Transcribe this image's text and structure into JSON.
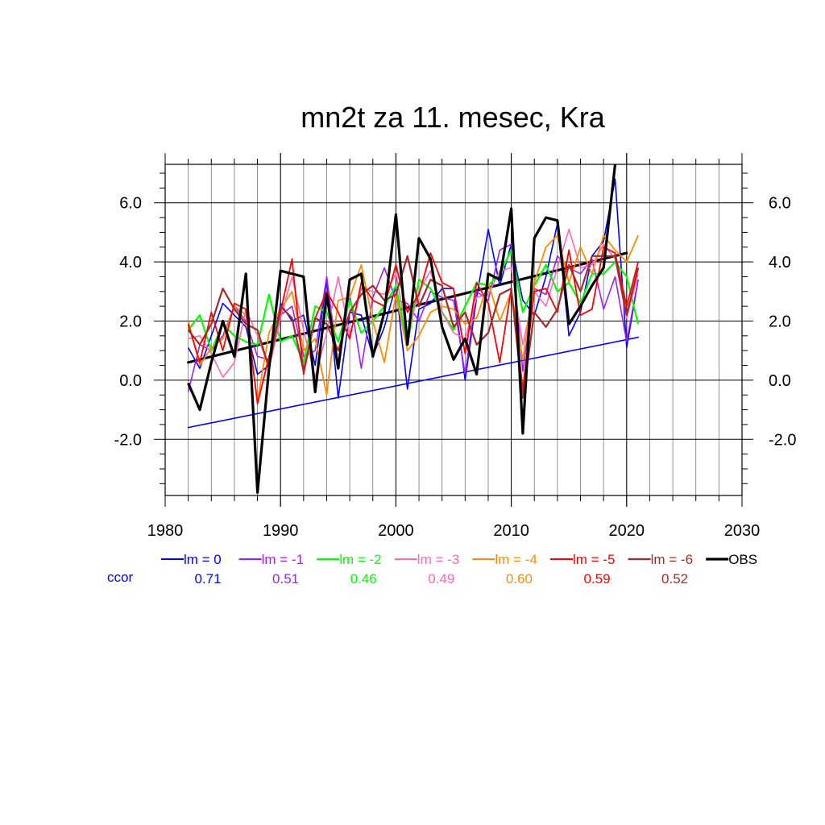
{
  "chart_data": {
    "type": "line",
    "title": "mn2t za 11. mesec, Kra",
    "xlim": [
      1980,
      2030
    ],
    "ylim": [
      -3.9,
      7.3
    ],
    "x_ticks": [
      1980,
      1990,
      2000,
      2010,
      2020,
      2030
    ],
    "x_tick_labels": [
      "1980",
      "1990",
      "2000",
      "2010",
      "2020",
      "2030"
    ],
    "y_ticks": [
      -2,
      0,
      2,
      4,
      6
    ],
    "y_tick_labels": [
      "-2.0",
      "0.0",
      "2.0",
      "4.0",
      "6.0"
    ],
    "grid": true,
    "legend_position": "bottom",
    "ccor_label": "ccor",
    "years": [
      1982,
      1983,
      1984,
      1985,
      1986,
      1987,
      1988,
      1989,
      1990,
      1991,
      1992,
      1993,
      1994,
      1995,
      1996,
      1997,
      1998,
      1999,
      2000,
      2001,
      2002,
      2003,
      2004,
      2005,
      2006,
      2007,
      2008,
      2009,
      2010,
      2011,
      2012,
      2013,
      2014,
      2015,
      2016,
      2017,
      2018,
      2019,
      2020,
      2021
    ],
    "series": [
      {
        "name": "lm = 0",
        "ccor": "0.71",
        "color": "#0000ff",
        "width": 1.6,
        "values": [
          1.1,
          0.4,
          1.5,
          2.6,
          2.2,
          1.8,
          0.2,
          0.5,
          2.6,
          2.0,
          2.2,
          0.5,
          3.4,
          -0.6,
          2.3,
          2.2,
          0.8,
          1.8,
          3.2,
          -0.3,
          2.4,
          2.6,
          3.1,
          3.1,
          0.0,
          2.8,
          5.1,
          3.2,
          4.6,
          2.7,
          2.2,
          3.5,
          5.3,
          1.5,
          2.3,
          4.2,
          4.7,
          6.8,
          1.1,
          3.4
        ]
      },
      {
        "name": "lm = -1",
        "ccor": "0.51",
        "color": "#a020f0",
        "width": 1.6,
        "values": [
          -0.4,
          1.2,
          1.0,
          1.5,
          2.5,
          2.0,
          0.8,
          0.7,
          2.2,
          2.5,
          0.8,
          1.0,
          3.5,
          0.5,
          2.9,
          0.4,
          2.8,
          3.8,
          2.7,
          2.6,
          2.0,
          3.0,
          2.8,
          2.7,
          0.2,
          3.0,
          2.7,
          4.4,
          4.6,
          0.3,
          3.1,
          2.9,
          4.2,
          3.8,
          3.6,
          4.1,
          2.4,
          3.5,
          1.3,
          3.4
        ]
      },
      {
        "name": "lm = -2",
        "ccor": "0.46",
        "color": "#00ff00",
        "width": 2.2,
        "values": [
          1.7,
          2.2,
          1.0,
          1.9,
          1.5,
          1.3,
          1.2,
          2.9,
          1.3,
          1.5,
          0.6,
          2.5,
          2.3,
          1.3,
          2.7,
          1.6,
          2.0,
          2.5,
          3.2,
          1.2,
          3.4,
          3.1,
          2.3,
          1.7,
          2.5,
          3.3,
          3.2,
          3.6,
          4.4,
          2.3,
          3.2,
          3.9,
          3.0,
          3.3,
          2.6,
          3.6,
          3.6,
          4.0,
          3.5,
          1.9
        ]
      },
      {
        "name": "lm = -3",
        "ccor": "0.49",
        "color": "#ff69b4",
        "width": 1.6,
        "values": [
          1.4,
          1.5,
          0.9,
          0.1,
          0.6,
          2.4,
          1.5,
          0.4,
          2.1,
          3.5,
          1.7,
          0.1,
          1.6,
          3.5,
          1.5,
          3.1,
          3.0,
          2.9,
          3.6,
          1.5,
          3.0,
          3.7,
          2.3,
          1.6,
          1.4,
          2.8,
          2.9,
          3.7,
          3.8,
          1.2,
          3.0,
          2.5,
          3.8,
          5.1,
          3.8,
          3.9,
          4.6,
          4.1,
          2.1,
          3.6
        ]
      },
      {
        "name": "lm = -4",
        "ccor": "0.60",
        "color": "#ff8c00",
        "width": 1.8,
        "values": [
          2.0,
          0.5,
          1.1,
          1.4,
          2.5,
          2.2,
          -0.7,
          1.6,
          2.4,
          3.0,
          1.0,
          1.4,
          -0.5,
          2.7,
          2.8,
          3.9,
          2.0,
          0.6,
          2.9,
          1.0,
          1.5,
          2.3,
          2.5,
          2.4,
          1.9,
          2.1,
          3.3,
          2.0,
          3.0,
          0.7,
          3.3,
          4.5,
          4.9,
          3.3,
          4.5,
          3.6,
          4.9,
          4.4,
          4.0,
          4.9
        ]
      },
      {
        "name": "lm = -5",
        "ccor": "0.59",
        "color": "#ff0000",
        "width": 1.8,
        "values": [
          1.9,
          0.6,
          2.3,
          1.0,
          2.6,
          2.4,
          -0.8,
          0.8,
          2.3,
          4.1,
          0.2,
          2.1,
          3.0,
          2.3,
          1.4,
          3.3,
          2.7,
          2.5,
          3.9,
          2.3,
          2.9,
          4.3,
          3.3,
          3.1,
          0.9,
          3.3,
          2.6,
          0.6,
          3.1,
          -0.3,
          3.0,
          3.1,
          2.3,
          4.4,
          2.2,
          2.4,
          4.5,
          4.3,
          2.5,
          4.0
        ]
      },
      {
        "name": "lm = -6",
        "ccor": "0.52",
        "color": "#a52a2a",
        "width": 2.2,
        "values": [
          1.7,
          1.2,
          1.9,
          3.1,
          2.4,
          1.9,
          1.7,
          0.4,
          2.5,
          2.1,
          0.3,
          2.1,
          1.9,
          1.0,
          2.3,
          2.9,
          3.2,
          2.7,
          2.9,
          4.2,
          2.5,
          3.4,
          3.2,
          1.8,
          2.3,
          1.2,
          1.6,
          2.9,
          3.1,
          -0.6,
          2.3,
          1.8,
          2.4,
          3.9,
          3.0,
          4.2,
          4.2,
          4.2,
          2.2,
          3.8
        ]
      },
      {
        "name": "OBS",
        "ccor": "",
        "color": "#000000",
        "width": 3.2,
        "values": [
          -0.1,
          -1.0,
          0.6,
          2.0,
          0.8,
          3.6,
          -3.8,
          0.4,
          3.7,
          3.6,
          3.5,
          -0.4,
          2.9,
          0.4,
          3.4,
          3.6,
          0.8,
          2.3,
          5.6,
          1.2,
          4.8,
          4.1,
          1.8,
          0.7,
          1.4,
          0.2,
          3.6,
          3.4,
          5.8,
          -1.8,
          4.8,
          5.5,
          5.4,
          1.9,
          2.5,
          3.2,
          3.8,
          7.3,
          null,
          null
        ]
      }
    ],
    "trends": [
      {
        "series": "OBS",
        "x": [
          1982,
          2020
        ],
        "y": [
          0.6,
          4.3
        ],
        "color": "#000000",
        "width": 3.2
      },
      {
        "series": "lm = 0",
        "x": [
          1982,
          2021
        ],
        "y": [
          -1.6,
          1.45
        ],
        "color": "#0000ff",
        "width": 1.6
      }
    ]
  }
}
